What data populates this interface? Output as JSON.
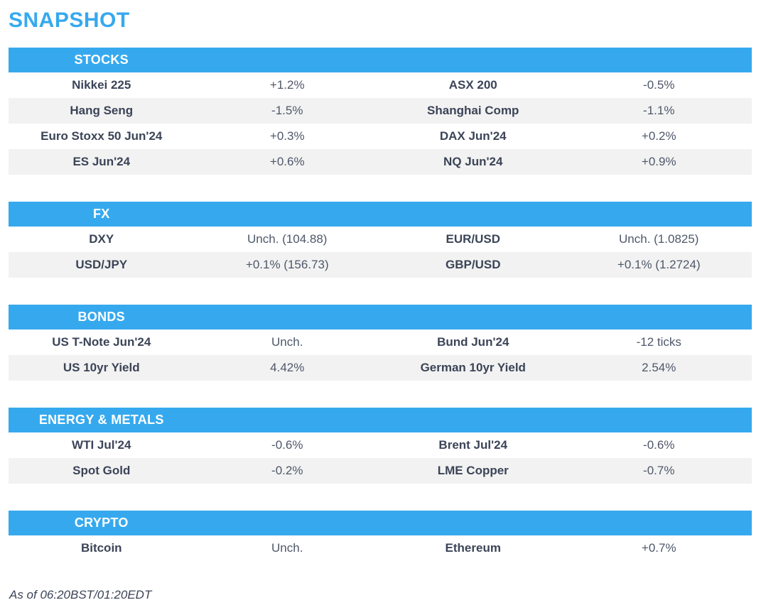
{
  "title": "SNAPSHOT",
  "footer": "As of 06:20BST/01:20EDT",
  "colors": {
    "accent": "#36A9EE",
    "stripe": "#F2F2F2",
    "label_text": "#3B4457",
    "value_text": "#4E5769"
  },
  "sections": [
    {
      "header": "STOCKS",
      "rows": [
        [
          "Nikkei 225",
          "+1.2%",
          "ASX 200",
          "-0.5%"
        ],
        [
          "Hang Seng",
          "-1.5%",
          "Shanghai Comp",
          "-1.1%"
        ],
        [
          "Euro Stoxx 50 Jun'24",
          "+0.3%",
          "DAX Jun'24",
          "+0.2%"
        ],
        [
          "ES Jun'24",
          "+0.6%",
          "NQ Jun'24",
          "+0.9%"
        ]
      ]
    },
    {
      "header": "FX",
      "rows": [
        [
          "DXY",
          "Unch. (104.88)",
          "EUR/USD",
          "Unch. (1.0825)"
        ],
        [
          "USD/JPY",
          "+0.1% (156.73)",
          "GBP/USD",
          "+0.1% (1.2724)"
        ]
      ]
    },
    {
      "header": "BONDS",
      "rows": [
        [
          "US T-Note Jun'24",
          "Unch.",
          "Bund Jun'24",
          "-12 ticks"
        ],
        [
          "US 10yr Yield",
          "4.42%",
          "German 10yr Yield",
          "2.54%"
        ]
      ]
    },
    {
      "header": "ENERGY & METALS",
      "rows": [
        [
          "WTI Jul'24",
          "-0.6%",
          "Brent Jul'24",
          "-0.6%"
        ],
        [
          "Spot Gold",
          "-0.2%",
          "LME Copper",
          "-0.7%"
        ]
      ]
    },
    {
      "header": "CRYPTO",
      "rows": [
        [
          "Bitcoin",
          "Unch.",
          "Ethereum",
          "+0.7%"
        ]
      ]
    }
  ]
}
